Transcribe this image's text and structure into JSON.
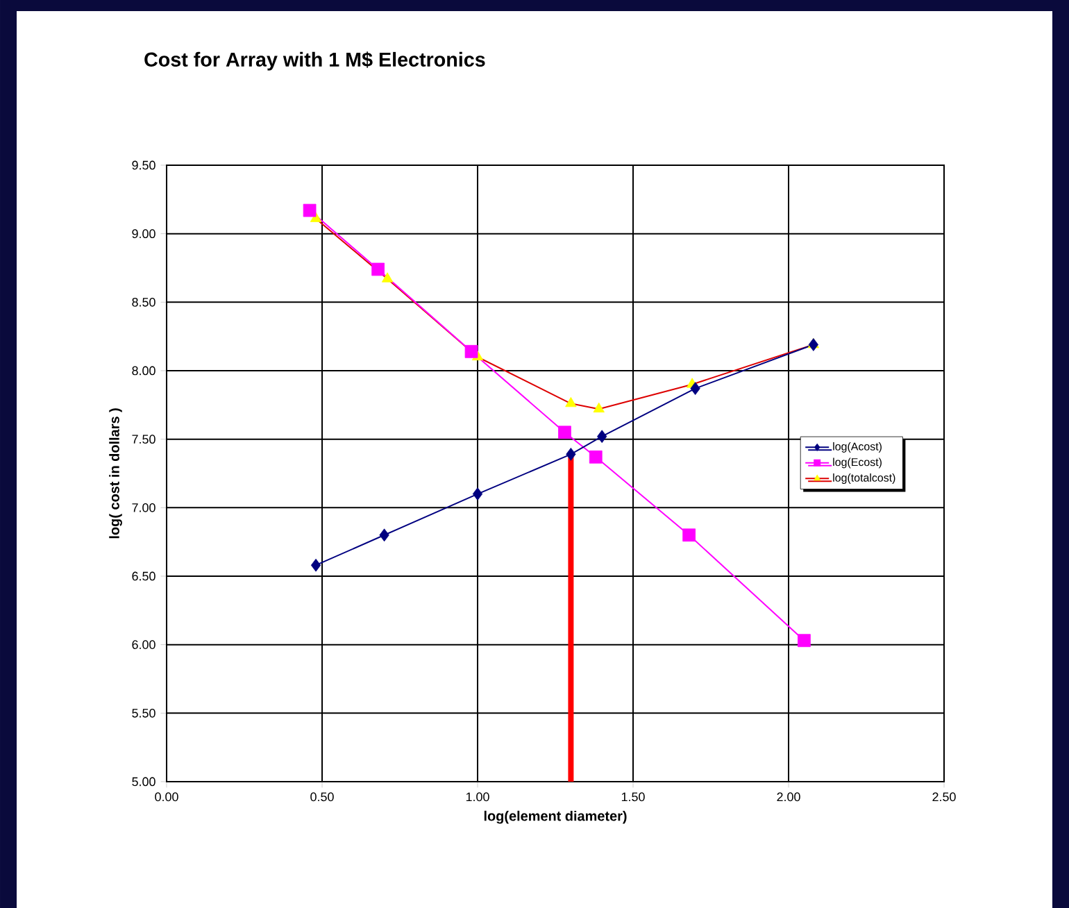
{
  "chart_data": {
    "type": "line",
    "title": "Cost for Array with 1 M$ Electronics",
    "xlabel": "log(element diameter)",
    "ylabel": "log( cost in dollars )",
    "xlim": [
      0,
      2.5
    ],
    "ylim": [
      5,
      9.5
    ],
    "xticks": [
      {
        "value": 0,
        "label": "0.00"
      },
      {
        "value": 0.5,
        "label": "0.50"
      },
      {
        "value": 1,
        "label": "1.00"
      },
      {
        "value": 1.5,
        "label": "1.50"
      },
      {
        "value": 2,
        "label": "2.00"
      },
      {
        "value": 2.5,
        "label": "2.50"
      }
    ],
    "yticks": [
      {
        "value": 5,
        "label": "5.00"
      },
      {
        "value": 5.5,
        "label": "5.50"
      },
      {
        "value": 6,
        "label": "6.00"
      },
      {
        "value": 6.5,
        "label": "6.50"
      },
      {
        "value": 7,
        "label": "7.00"
      },
      {
        "value": 7.5,
        "label": "7.50"
      },
      {
        "value": 8,
        "label": "8.00"
      },
      {
        "value": 8.5,
        "label": "8.50"
      },
      {
        "value": 9,
        "label": "9.00"
      },
      {
        "value": 9.5,
        "label": "9.50"
      }
    ],
    "grid": true,
    "legend": "right",
    "series": [
      {
        "name": "log(Acost)",
        "color": "#000080",
        "marker": "diamond",
        "x": [
          0.48,
          0.7,
          1.0,
          1.3,
          1.4,
          1.7,
          2.08
        ],
        "values": [
          6.58,
          6.8,
          7.1,
          7.39,
          7.52,
          7.87,
          8.19
        ]
      },
      {
        "name": "log(Ecost)",
        "color": "#ff00ff",
        "marker": "square",
        "x": [
          0.46,
          0.68,
          0.98,
          1.28,
          1.38,
          1.68,
          2.05
        ],
        "values": [
          9.17,
          8.74,
          8.14,
          7.55,
          7.37,
          6.8,
          6.03
        ]
      },
      {
        "name": "log(totalcost)",
        "color": "#dd0000",
        "colors": [
          "#ffff00",
          "#ffff00",
          "#ffff00",
          "#ffff00",
          "#ffff00",
          "#ffff00",
          "#ffff00"
        ],
        "marker": "triangle",
        "x": [
          0.48,
          0.71,
          1.0,
          1.3,
          1.39,
          1.69,
          2.08
        ],
        "values": [
          9.11,
          8.67,
          8.1,
          7.76,
          7.72,
          7.9,
          8.19
        ]
      }
    ],
    "ref_lines": [
      {
        "axis": "x",
        "value": 1.3,
        "color": "#ff0000"
      }
    ]
  }
}
